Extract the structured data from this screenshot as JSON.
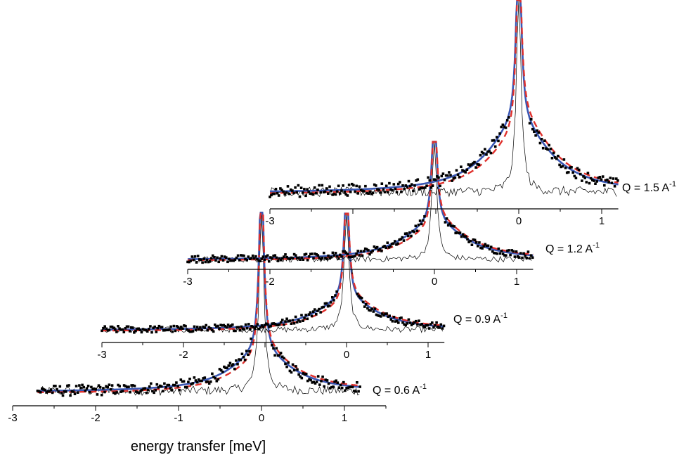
{
  "chart_data": {
    "type": "line",
    "title": "",
    "xlabel": "energy transfer [meV]",
    "ylabel": "",
    "xlim": [
      -3,
      1.5
    ],
    "x_ticks": [
      -3,
      -2,
      -1,
      0,
      1
    ],
    "grid": false,
    "legend": "none",
    "colors": {
      "data_points": "#000000",
      "resolution": "#000000",
      "fit_solid": "#3a57b4",
      "fit_dashed": "#e0302c"
    },
    "panels": [
      {
        "label_prefix": "Q = 0.6 A",
        "label_sup": "-1",
        "tick_labels": [
          "-3",
          "-2",
          "-1",
          "0",
          "1"
        ],
        "x_min": -3.0,
        "x_max": 1.5,
        "data_x_start": -2.7,
        "data_x_end": 1.2,
        "series": [
          {
            "name": "",
            "style": "points"
          },
          {
            "name": "",
            "style": "resolution"
          },
          {
            "name": "",
            "style": "solid"
          },
          {
            "name": "",
            "style": "dashed"
          }
        ]
      },
      {
        "label_prefix": "Q = 0.9 A",
        "label_sup": "-1",
        "tick_labels": [
          "-3",
          "-2",
          "0",
          "1"
        ],
        "x_min": -3.0,
        "x_max": 1.2,
        "data_x_start": -3.0,
        "data_x_end": 1.2,
        "series": [
          {
            "name": "",
            "style": "points"
          },
          {
            "name": "",
            "style": "resolution"
          },
          {
            "name": "",
            "style": "solid"
          },
          {
            "name": "",
            "style": "dashed"
          }
        ]
      },
      {
        "label_prefix": "Q = 1.2 A",
        "label_sup": "-1",
        "tick_labels": [
          "-3",
          "-2",
          "0",
          "1"
        ],
        "x_min": -3.0,
        "x_max": 1.2,
        "data_x_start": -3.0,
        "data_x_end": 1.2,
        "series": [
          {
            "name": "",
            "style": "points"
          },
          {
            "name": "",
            "style": "resolution"
          },
          {
            "name": "",
            "style": "solid"
          },
          {
            "name": "",
            "style": "dashed"
          }
        ]
      },
      {
        "label_prefix": "Q = 1.5 A",
        "label_sup": "-1",
        "tick_labels": [
          "-3",
          "0",
          "1"
        ],
        "x_min": -3.0,
        "x_max": 1.2,
        "data_x_start": -3.0,
        "data_x_end": 1.2,
        "series": [
          {
            "name": "",
            "style": "points"
          },
          {
            "name": "",
            "style": "resolution"
          },
          {
            "name": "",
            "style": "solid"
          },
          {
            "name": "",
            "style": "dashed"
          }
        ]
      }
    ]
  }
}
